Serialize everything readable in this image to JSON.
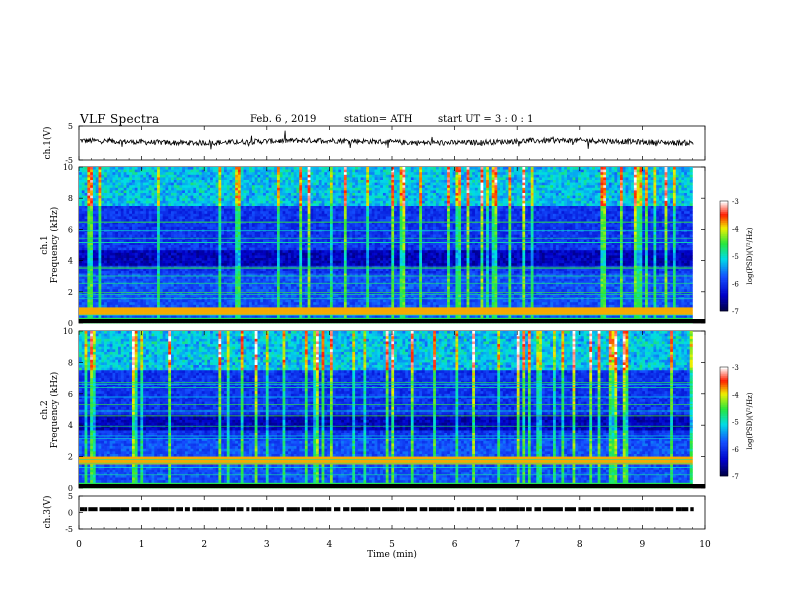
{
  "header": {
    "title": "VLF  Spectra",
    "date": "Feb. 6  , 2019",
    "station": "station= ATH",
    "start": "start  UT  =    3  : 0   : 1"
  },
  "chart_data": [
    {
      "type": "line",
      "id": "ch1-waveform",
      "ylabel": "ch.1(V)",
      "ylim": [
        -5,
        5
      ],
      "yticks": [
        "5",
        "-5"
      ],
      "xlim": [
        0,
        10
      ],
      "description_level": 0.4
    },
    {
      "type": "heatmap",
      "id": "ch1-spectrogram",
      "ylabel_line1": "ch.1",
      "ylabel_line2": "Frequency (kHz)",
      "ylim": [
        0,
        10
      ],
      "yticks": [
        "0",
        "2",
        "4",
        "6",
        "8",
        "10"
      ],
      "xlim": [
        0,
        9.8
      ],
      "colorbar": {
        "label": "log(PSD)(V²/Hz)",
        "ticks": [
          "-3",
          "-4",
          "-5",
          "-6",
          "-7"
        ],
        "range": [
          -7,
          -3
        ]
      }
    },
    {
      "type": "heatmap",
      "id": "ch2-spectrogram",
      "ylabel_line1": "ch.2",
      "ylabel_line2": "Frequency (kHz)",
      "ylim": [
        0,
        10
      ],
      "yticks": [
        "0",
        "2",
        "4",
        "6",
        "8",
        "10"
      ],
      "xlim": [
        0,
        9.8
      ],
      "colorbar": {
        "label": "log(PSD)(V²/Hz)",
        "ticks": [
          "-3",
          "-4",
          "-5",
          "-6",
          "-7"
        ],
        "range": [
          -7,
          -3
        ]
      }
    },
    {
      "type": "line",
      "id": "ch3-signal",
      "ylabel": "ch.3(V)",
      "ylim": [
        -5,
        5
      ],
      "yticks": [
        "5",
        "0",
        "-5"
      ],
      "xlim": [
        0,
        10
      ],
      "level": 1.0
    }
  ],
  "xaxis": {
    "label": "Time  (min)",
    "ticks": [
      "0",
      "1",
      "2",
      "3",
      "4",
      "5",
      "6",
      "7",
      "8",
      "9",
      "10"
    ],
    "range": [
      0,
      10
    ]
  },
  "colors": {
    "spectrogram_low": "#00003c",
    "spectrogram_high": "#ffffff",
    "axis": "#000000"
  }
}
